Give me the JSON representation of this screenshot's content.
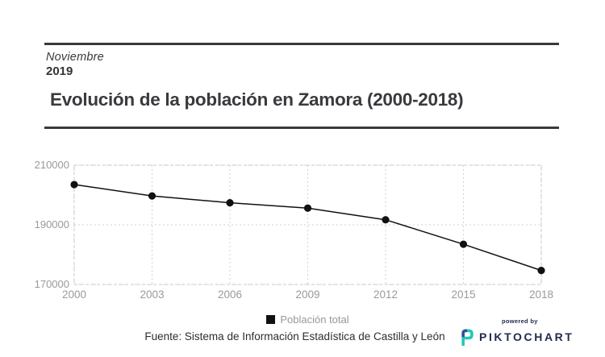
{
  "header": {
    "month": "Noviembre",
    "year": "2019",
    "title": "Evolución de la población en Zamora (2000-2018)"
  },
  "chart_data": {
    "type": "line",
    "title": "Evolución de la población en Zamora (2000-2018)",
    "categories": [
      "2000",
      "2003",
      "2006",
      "2009",
      "2012",
      "2015",
      "2018"
    ],
    "series": [
      {
        "name": "Población total",
        "values": [
          203500,
          199700,
          197400,
          195600,
          191700,
          183500,
          174700
        ]
      }
    ],
    "xlabel": "",
    "ylabel": "",
    "ylim": [
      170000,
      210000
    ],
    "yticks": [
      210000,
      190000,
      170000
    ],
    "grid": true,
    "grid_style": "dashed",
    "legend_position": "bottom",
    "line_color": "#111111",
    "marker": "circle",
    "gridline_color": "#d2d2d2",
    "border_color": "#c8c8c8",
    "tick_label_color": "#9a9a9e"
  },
  "legend": {
    "items": [
      {
        "label": "Población total",
        "color": "#111111"
      }
    ]
  },
  "footer": {
    "source": "Fuente: Sistema de Información Estadística de Castilla y León"
  },
  "branding": {
    "powered_by": "powered by",
    "brand": "PIKTOCHART",
    "brand_color": "#222b4e",
    "icon_color": "#1ec9b4",
    "icon_accent_color": "#33508f"
  },
  "colors": {
    "rule": "#3a3a3e",
    "title_text": "#3a3a3e",
    "footer_text": "#2e2e30",
    "axis_text": "#9a9a9e"
  }
}
